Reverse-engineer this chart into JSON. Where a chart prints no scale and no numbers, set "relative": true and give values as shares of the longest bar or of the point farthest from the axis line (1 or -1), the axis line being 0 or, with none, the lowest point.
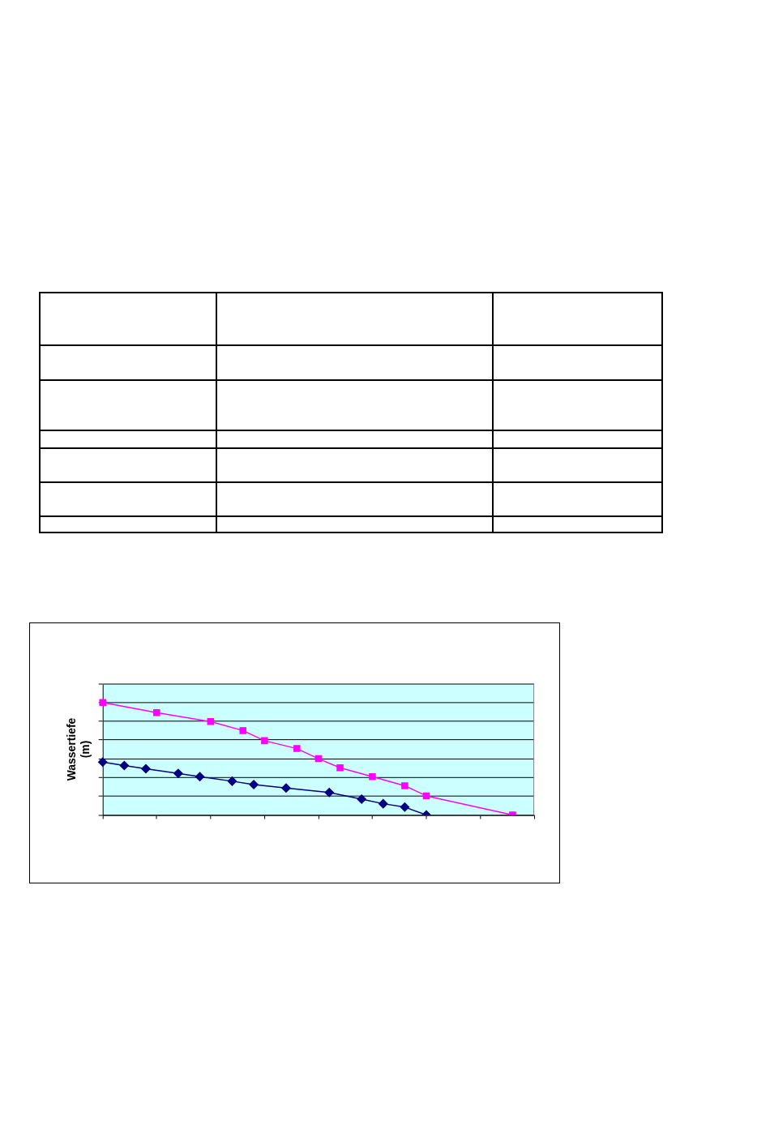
{
  "chart_data": {
    "type": "line",
    "relative": true,
    "ylabel": "Wassertiefe (m)",
    "grid": "y",
    "categories": [
      null,
      null,
      null,
      null,
      null,
      null,
      null,
      null,
      null,
      null,
      null,
      null,
      null,
      null,
      null,
      null,
      null,
      null,
      null,
      null,
      null,
      null,
      null,
      null,
      null,
      null,
      null,
      null,
      null,
      null,
      null,
      null,
      null,
      null,
      null,
      null,
      null,
      null,
      null,
      null,
      null
    ],
    "series": [
      {
        "color": "#000080",
        "marker": "diamond",
        "values": [
          0.47,
          null,
          0.44,
          null,
          0.41,
          null,
          null,
          0.37,
          null,
          0.34,
          null,
          null,
          0.3,
          null,
          0.27,
          null,
          null,
          0.24,
          null,
          null,
          null,
          0.2,
          null,
          null,
          0.14,
          null,
          0.1,
          null,
          0.07,
          null,
          0,
          null,
          null,
          null,
          null,
          null,
          null,
          null,
          null,
          null,
          null
        ]
      },
      {
        "color": "#ff00ff",
        "marker": "square",
        "values": [
          1,
          null,
          null,
          null,
          null,
          0.91,
          null,
          null,
          null,
          null,
          0.83,
          null,
          null,
          0.75,
          null,
          0.66,
          null,
          null,
          0.59,
          null,
          0.5,
          null,
          0.42,
          null,
          null,
          0.34,
          null,
          null,
          0.26,
          null,
          0.17,
          null,
          null,
          null,
          null,
          null,
          null,
          null,
          0,
          null,
          null
        ]
      }
    ]
  }
}
